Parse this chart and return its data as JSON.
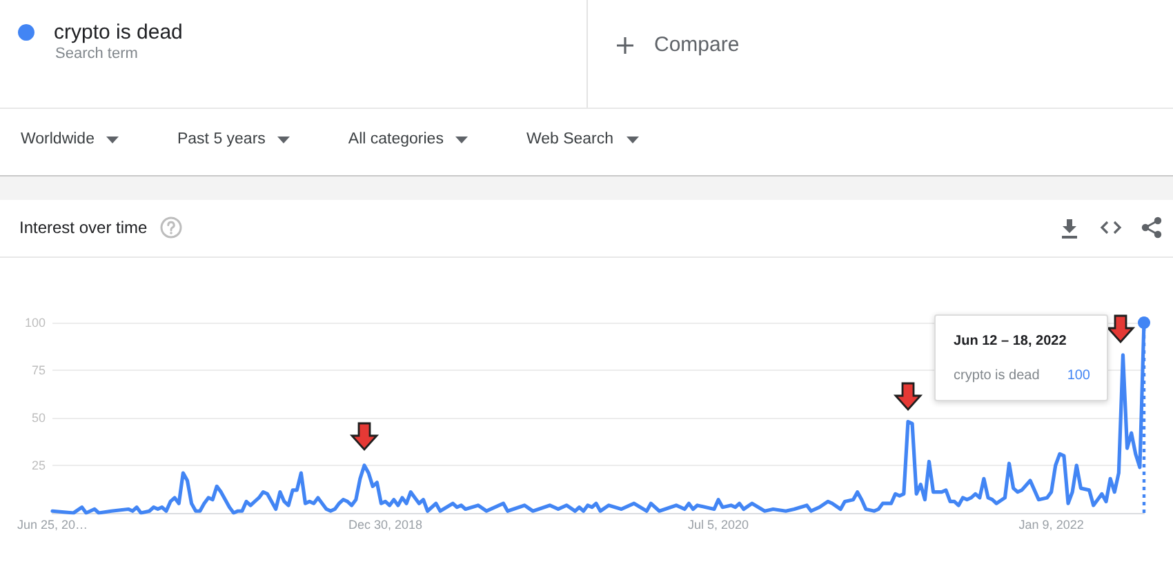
{
  "chart_data": {
    "type": "line",
    "title": "Interest over time",
    "annotations": [
      "Search term",
      "Compare",
      "Worldwide",
      "Past 5 years",
      "All categories",
      "Web Search",
      "Jun 12 – 18, 2022",
      "100"
    ],
    "x": [
      "2017-06-25",
      "2017-07-30",
      "2017-08-13",
      "2017-08-20",
      "2017-09-03",
      "2017-09-10",
      "2017-10-01",
      "2017-10-29",
      "2017-11-05",
      "2017-11-12",
      "2017-11-19",
      "2017-12-03",
      "2017-12-10",
      "2017-12-17",
      "2017-12-24",
      "2017-12-31",
      "2018-01-07",
      "2018-01-14",
      "2018-01-21",
      "2018-01-28",
      "2018-02-04",
      "2018-02-11",
      "2018-02-18",
      "2018-02-25",
      "2018-03-04",
      "2018-03-11",
      "2018-03-18",
      "2018-03-25",
      "2018-04-01",
      "2018-04-08",
      "2018-04-15",
      "2018-04-22",
      "2018-04-29",
      "2018-05-06",
      "2018-05-13",
      "2018-05-20",
      "2018-05-27",
      "2018-06-03",
      "2018-06-10",
      "2018-06-17",
      "2018-06-24",
      "2018-07-01",
      "2018-07-08",
      "2018-07-15",
      "2018-07-22",
      "2018-07-29",
      "2018-08-05",
      "2018-08-12",
      "2018-08-19",
      "2018-08-26",
      "2018-09-02",
      "2018-09-09",
      "2018-09-16",
      "2018-09-23",
      "2018-09-30",
      "2018-10-07",
      "2018-10-14",
      "2018-10-21",
      "2018-10-28",
      "2018-11-04",
      "2018-11-11",
      "2018-11-18",
      "2018-11-25",
      "2018-12-02",
      "2018-12-09",
      "2018-12-16",
      "2018-12-23",
      "2018-12-30",
      "2019-01-06",
      "2019-01-13",
      "2019-01-20",
      "2019-01-27",
      "2019-02-03",
      "2019-02-10",
      "2019-02-17",
      "2019-02-24",
      "2019-03-03",
      "2019-03-10",
      "2019-03-17",
      "2019-03-24",
      "2019-03-31",
      "2019-04-21",
      "2019-04-28",
      "2019-05-05",
      "2019-05-12",
      "2019-06-02",
      "2019-06-16",
      "2019-07-14",
      "2019-07-21",
      "2019-08-18",
      "2019-09-01",
      "2019-09-29",
      "2019-10-13",
      "2019-10-27",
      "2019-11-10",
      "2019-11-17",
      "2019-11-24",
      "2019-12-01",
      "2019-12-08",
      "2019-12-15",
      "2019-12-22",
      "2020-01-05",
      "2020-01-26",
      "2020-02-16",
      "2020-03-08",
      "2020-03-15",
      "2020-03-29",
      "2020-04-26",
      "2020-05-10",
      "2020-05-17",
      "2020-05-24",
      "2020-05-31",
      "2020-06-28",
      "2020-07-05",
      "2020-07-12",
      "2020-07-26",
      "2020-08-02",
      "2020-08-09",
      "2020-08-16",
      "2020-08-30",
      "2020-09-20",
      "2020-10-04",
      "2020-10-25",
      "2020-11-08",
      "2020-11-29",
      "2020-12-06",
      "2020-12-20",
      "2021-01-03",
      "2021-01-10",
      "2021-01-24",
      "2021-01-31",
      "2021-02-14",
      "2021-02-21",
      "2021-02-28",
      "2021-03-07",
      "2021-03-21",
      "2021-03-28",
      "2021-04-04",
      "2021-04-18",
      "2021-04-25",
      "2021-05-02",
      "2021-05-09",
      "2021-05-16",
      "2021-05-23",
      "2021-05-30",
      "2021-06-06",
      "2021-06-13",
      "2021-06-20",
      "2021-06-27",
      "2021-07-11",
      "2021-07-18",
      "2021-07-25",
      "2021-08-01",
      "2021-08-08",
      "2021-08-15",
      "2021-08-22",
      "2021-08-29",
      "2021-09-05",
      "2021-09-12",
      "2021-09-19",
      "2021-09-26",
      "2021-10-03",
      "2021-10-10",
      "2021-10-24",
      "2021-10-31",
      "2021-11-07",
      "2021-11-14",
      "2021-11-21",
      "2021-12-05",
      "2021-12-12",
      "2021-12-19",
      "2022-01-02",
      "2022-01-09",
      "2022-01-16",
      "2022-01-23",
      "2022-01-30",
      "2022-02-06",
      "2022-02-13",
      "2022-02-20",
      "2022-02-27",
      "2022-03-13",
      "2022-03-20",
      "2022-03-27",
      "2022-04-03",
      "2022-04-10",
      "2022-04-17",
      "2022-04-24",
      "2022-05-01",
      "2022-05-08",
      "2022-05-15",
      "2022-05-22",
      "2022-05-29",
      "2022-06-05",
      "2022-06-12"
    ],
    "series": [
      {
        "name": "crypto is dead",
        "color": "#4285f4",
        "values": [
          1,
          0,
          3,
          0,
          2,
          0,
          1,
          2,
          1,
          3,
          0,
          1,
          3,
          2,
          3,
          1,
          6,
          8,
          5,
          21,
          17,
          5,
          1,
          1,
          5,
          8,
          7,
          14,
          11,
          7,
          3,
          0,
          1,
          1,
          6,
          4,
          6,
          8,
          11,
          10,
          6,
          2,
          11,
          6,
          4,
          12,
          12,
          21,
          5,
          6,
          5,
          8,
          5,
          2,
          1,
          2,
          5,
          7,
          6,
          4,
          7,
          18,
          25,
          21,
          14,
          16,
          5,
          6,
          4,
          7,
          4,
          8,
          5,
          11,
          8,
          5,
          7,
          1,
          3,
          5,
          1,
          5,
          3,
          4,
          2,
          4,
          1,
          5,
          1,
          4,
          1,
          4,
          2,
          4,
          1,
          3,
          1,
          4,
          3,
          5,
          1,
          4,
          2,
          5,
          1,
          5,
          1,
          4,
          2,
          5,
          2,
          4,
          2,
          7,
          3,
          4,
          3,
          5,
          2,
          5,
          1,
          2,
          1,
          2,
          4,
          1,
          3,
          6,
          5,
          2,
          6,
          7,
          11,
          7,
          2,
          1,
          2,
          5,
          5,
          10,
          9,
          10,
          48,
          47,
          10,
          15,
          7,
          27,
          11,
          11,
          12,
          6,
          6,
          4,
          8,
          7,
          8,
          10,
          8,
          18,
          8,
          7,
          5,
          8,
          26,
          13,
          11,
          12,
          17,
          12,
          7,
          8,
          11,
          25,
          31,
          30,
          5,
          11,
          25,
          13,
          12,
          4,
          7,
          10,
          6,
          18,
          11,
          21,
          83,
          34,
          42,
          31,
          24,
          100
        ]
      }
    ],
    "xlim": [
      "2017-06-25",
      "2022-06-12"
    ],
    "xticks": [
      {
        "value": "2017-06-25",
        "label": "Jun 25, 20…"
      },
      {
        "value": "2018-12-30",
        "label": "Dec 30, 2018"
      },
      {
        "value": "2020-07-05",
        "label": "Jul 5, 2020"
      },
      {
        "value": "2022-01-09",
        "label": "Jan 9, 2022"
      }
    ],
    "ylim": [
      0,
      100
    ],
    "yticks": [
      25,
      50,
      75,
      100
    ],
    "grid": "y",
    "legend": "top left",
    "marker": "none",
    "line_style": "solid",
    "ref_lines": [
      {
        "axis": "x",
        "value": "2022-06-12",
        "color": "#4285f4",
        "line_style": "dotted"
      }
    ]
  }
}
